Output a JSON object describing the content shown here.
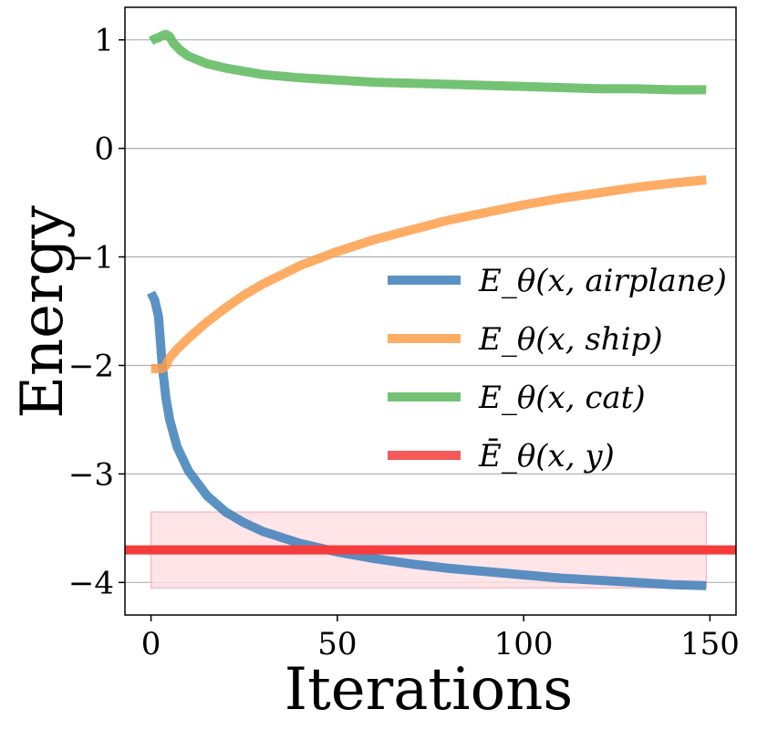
{
  "chart_data": {
    "type": "line",
    "xlabel": "Iterations",
    "ylabel": "Energy",
    "xlim": [
      -7,
      157
    ],
    "ylim": [
      -4.3,
      1.3
    ],
    "xticks": [
      0,
      50,
      100,
      150
    ],
    "yticks": [
      1,
      0,
      -1,
      -2,
      -3,
      -4
    ],
    "ytick_labels": [
      "1",
      "0",
      "−1",
      "−2",
      "−3",
      "−4"
    ],
    "grid": "horizontal",
    "legend_position": "center-right",
    "series": [
      {
        "name": "E_θ(x, airplane)",
        "color": "#3d7fba",
        "points": [
          [
            0,
            -1.33
          ],
          [
            1,
            -1.4
          ],
          [
            2,
            -1.55
          ],
          [
            3,
            -2.0
          ],
          [
            4,
            -2.3
          ],
          [
            5,
            -2.5
          ],
          [
            7,
            -2.75
          ],
          [
            10,
            -2.97
          ],
          [
            15,
            -3.2
          ],
          [
            20,
            -3.35
          ],
          [
            25,
            -3.45
          ],
          [
            30,
            -3.53
          ],
          [
            40,
            -3.64
          ],
          [
            50,
            -3.72
          ],
          [
            60,
            -3.78
          ],
          [
            70,
            -3.83
          ],
          [
            80,
            -3.87
          ],
          [
            90,
            -3.9
          ],
          [
            100,
            -3.93
          ],
          [
            110,
            -3.96
          ],
          [
            120,
            -3.98
          ],
          [
            130,
            -4.0
          ],
          [
            140,
            -4.02
          ],
          [
            149,
            -4.03
          ]
        ]
      },
      {
        "name": "E_θ(x, ship)",
        "color": "#ff9e4a",
        "points": [
          [
            0,
            -2.03
          ],
          [
            1,
            -2.03
          ],
          [
            2,
            -2.03
          ],
          [
            3,
            -2.03
          ],
          [
            4,
            -2.0
          ],
          [
            5,
            -1.93
          ],
          [
            7,
            -1.85
          ],
          [
            10,
            -1.75
          ],
          [
            15,
            -1.6
          ],
          [
            20,
            -1.47
          ],
          [
            25,
            -1.35
          ],
          [
            30,
            -1.25
          ],
          [
            40,
            -1.08
          ],
          [
            50,
            -0.95
          ],
          [
            60,
            -0.84
          ],
          [
            70,
            -0.75
          ],
          [
            80,
            -0.66
          ],
          [
            90,
            -0.59
          ],
          [
            100,
            -0.52
          ],
          [
            110,
            -0.46
          ],
          [
            120,
            -0.41
          ],
          [
            130,
            -0.36
          ],
          [
            140,
            -0.32
          ],
          [
            149,
            -0.29
          ]
        ]
      },
      {
        "name": "E_θ(x, cat)",
        "color": "#5cb85c",
        "points": [
          [
            0,
            0.99
          ],
          [
            1,
            1.01
          ],
          [
            2,
            1.02
          ],
          [
            3,
            1.04
          ],
          [
            4,
            1.05
          ],
          [
            5,
            1.03
          ],
          [
            6,
            0.97
          ],
          [
            8,
            0.9
          ],
          [
            10,
            0.85
          ],
          [
            15,
            0.78
          ],
          [
            20,
            0.74
          ],
          [
            30,
            0.68
          ],
          [
            40,
            0.65
          ],
          [
            50,
            0.63
          ],
          [
            60,
            0.61
          ],
          [
            70,
            0.6
          ],
          [
            80,
            0.59
          ],
          [
            90,
            0.58
          ],
          [
            100,
            0.57
          ],
          [
            110,
            0.56
          ],
          [
            120,
            0.55
          ],
          [
            130,
            0.55
          ],
          [
            140,
            0.54
          ],
          [
            149,
            0.54
          ]
        ]
      },
      {
        "name": "Ē_θ(x, y)",
        "color": "#f43c3c",
        "hline": -3.7,
        "band": [
          -4.05,
          -3.35
        ],
        "band_x": [
          0,
          149
        ],
        "band_color": "#ffdde2"
      }
    ]
  }
}
